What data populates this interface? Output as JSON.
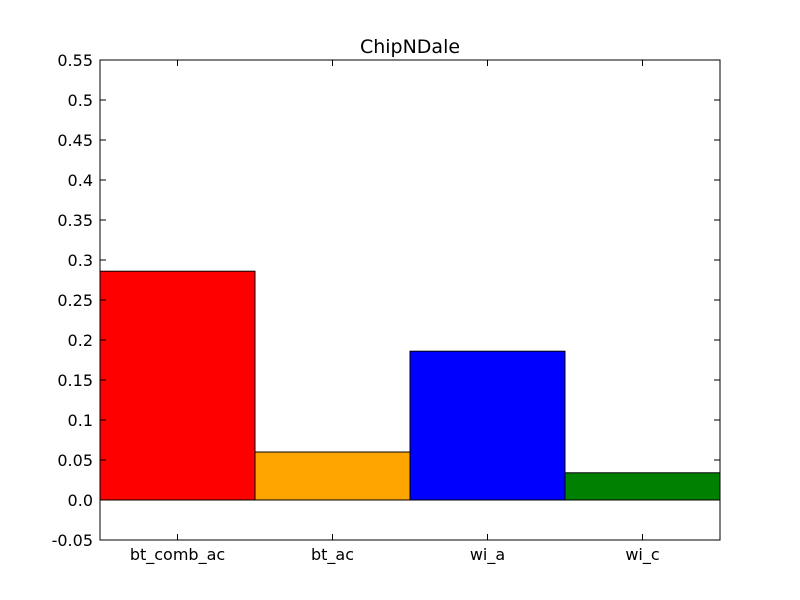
{
  "chart_data": {
    "type": "bar",
    "title": "ChipNDale",
    "xlabel": "",
    "ylabel": "",
    "categories": [
      "bt_comb_ac",
      "bt_ac",
      "wi_a",
      "wi_c"
    ],
    "values": [
      0.286,
      0.06,
      0.186,
      0.034
    ],
    "colors": [
      "#ff0000",
      "#ffa500",
      "#0000ff",
      "#008000"
    ],
    "ylim": [
      -0.05,
      0.55
    ],
    "yticks": [
      -0.05,
      0.0,
      0.05,
      0.1,
      0.15,
      0.2,
      0.25,
      0.3,
      0.35,
      0.4,
      0.45,
      0.5,
      0.55
    ],
    "ytick_labels": [
      "-0.05",
      "0.0",
      "0.05",
      "0.1",
      "0.15",
      "0.2",
      "0.25",
      "0.3",
      "0.35",
      "0.4",
      "0.45",
      "0.5",
      "0.55"
    ],
    "grid": false,
    "legend": "none"
  }
}
